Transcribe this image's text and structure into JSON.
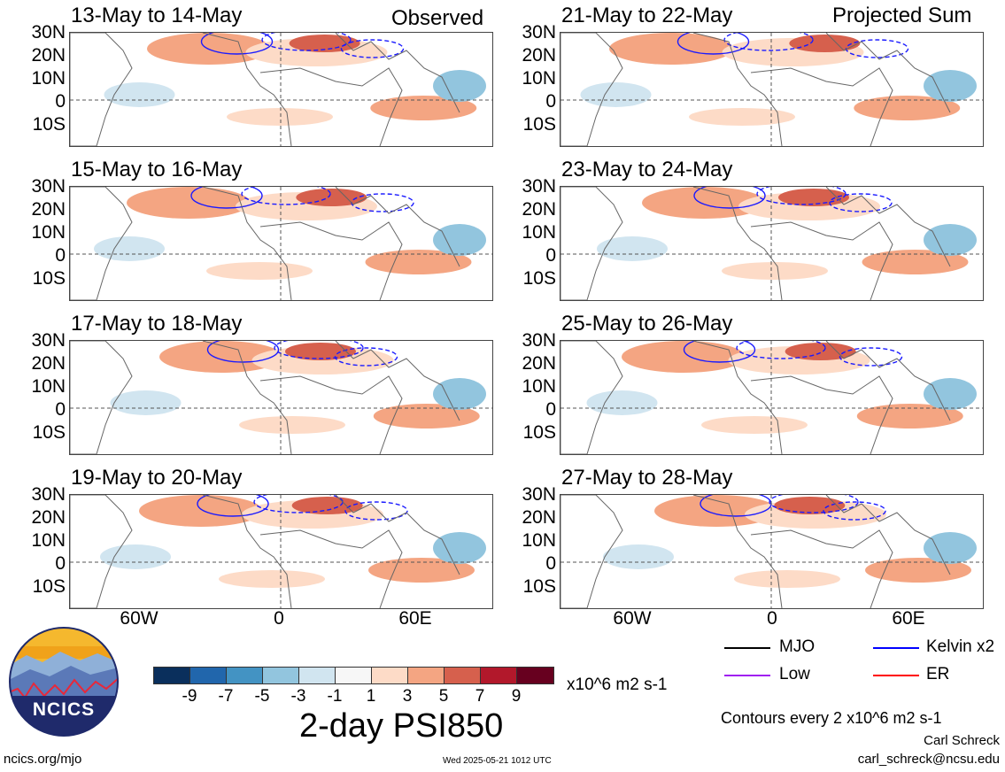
{
  "panels": {
    "left": {
      "header_right": "Observed",
      "titles": [
        "13-May to 14-May",
        "15-May to 16-May",
        "17-May to 18-May",
        "19-May to 20-May"
      ]
    },
    "right": {
      "header_right": "Projected Sum",
      "titles": [
        "21-May to 22-May",
        "23-May to 24-May",
        "25-May to 26-May",
        "27-May to 28-May"
      ]
    },
    "lat_labels": [
      "30N",
      "20N",
      "10N",
      "0",
      "10S"
    ],
    "lon_labels": [
      "60W",
      "0",
      "60E"
    ]
  },
  "colorbar": {
    "colors": [
      "#0a2f5c",
      "#2166ac",
      "#4393c3",
      "#92c5de",
      "#d1e5f0",
      "#f7f7f7",
      "#fddbc7",
      "#f4a582",
      "#d6604d",
      "#b2182b",
      "#67001f"
    ],
    "tick_labels": [
      "-9",
      "-7",
      "-5",
      "-3",
      "-1",
      "1",
      "3",
      "5",
      "7",
      "9"
    ],
    "units": "x10^6 m2 s-1",
    "title": "2-day PSI850"
  },
  "legend": {
    "items": [
      {
        "label": "MJO",
        "color": "#000000"
      },
      {
        "label": "Kelvin x2",
        "color": "#0000ff"
      },
      {
        "label": "Low",
        "color": "#a020f0"
      },
      {
        "label": "ER",
        "color": "#ff0000"
      }
    ],
    "contour_note": "Contours every 2 x10^6 m2 s-1"
  },
  "footer": {
    "logo_text": "NCICS",
    "site": "ncics.org/mjo",
    "timestamp": "Wed 2025-05-21 1012 UTC",
    "author": "Carl Schreck",
    "email": "carl_schreck@ncsu.edu"
  }
}
